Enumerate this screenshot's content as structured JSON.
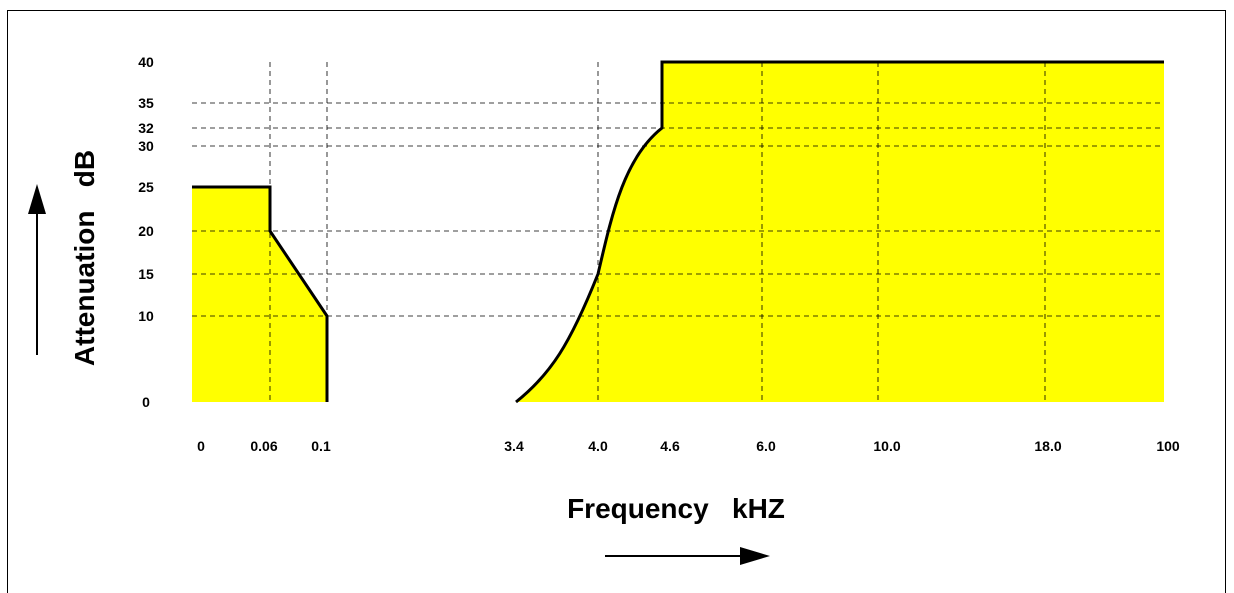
{
  "chart_data": {
    "type": "area",
    "xlabel": "Frequency   kHZ",
    "ylabel": "Attenuation   dB",
    "x_ticks": [
      "0",
      "0.06",
      "0.1",
      "3.4",
      "4.0",
      "4.6",
      "6.0",
      "10.0",
      "18.0",
      "100"
    ],
    "y_ticks": [
      0,
      10,
      15,
      20,
      25,
      30,
      32,
      35,
      40
    ],
    "ylim": [
      0,
      40
    ],
    "x_scale": "nonuniform-categorical",
    "grid": "dashed",
    "fill_color": "#ffff00",
    "line_color": "#000000",
    "series": [
      {
        "points": [
          {
            "x": "0",
            "y": 25
          },
          {
            "x": "0.06",
            "y": 25
          },
          {
            "x": "0.06",
            "y": 20
          },
          {
            "x": "0.1",
            "y": 10
          },
          {
            "x": "0.1",
            "y": 0
          }
        ]
      },
      {
        "points": [
          {
            "x": "3.4",
            "y": 0
          },
          {
            "x": "4.0",
            "y": 15
          },
          {
            "x": "4.6",
            "y": 32
          },
          {
            "x": "4.6",
            "y": 40
          },
          {
            "x": "100",
            "y": 40
          }
        ]
      }
    ]
  }
}
